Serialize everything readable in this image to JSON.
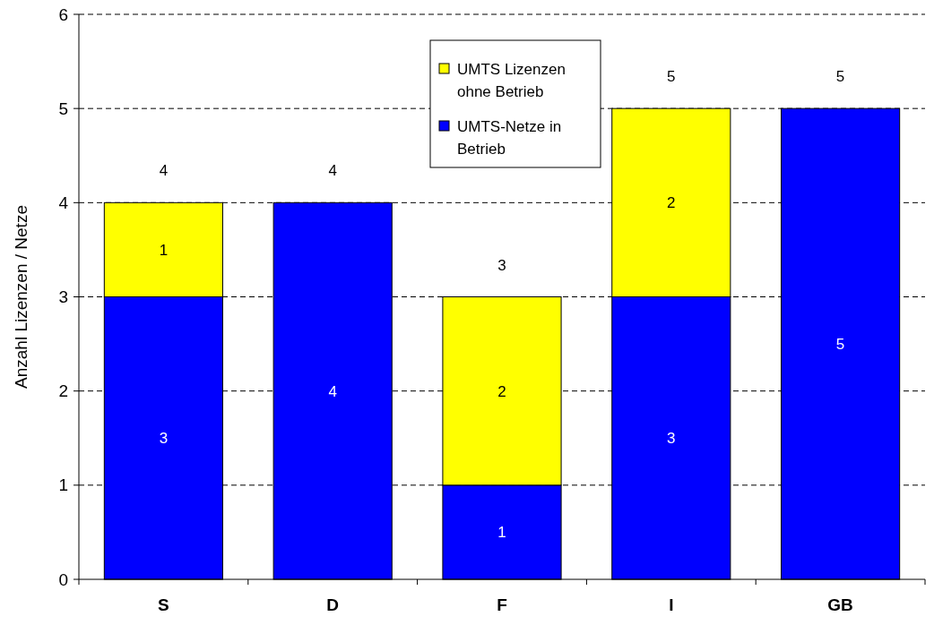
{
  "chart_data": {
    "type": "bar",
    "stacked": true,
    "ylabel": "Anzahl Lizenzen / Netze",
    "categories": [
      "S",
      "D",
      "F",
      "I",
      "GB"
    ],
    "series": [
      {
        "name": "UMTS-Netze in Betrieb",
        "color": "#0000ff",
        "values": [
          3,
          4,
          1,
          3,
          5
        ],
        "value_labels": [
          "3",
          "4",
          "1",
          "3",
          "5"
        ]
      },
      {
        "name": "UMTS Lizenzen ohne Betrieb",
        "color": "#ffff00",
        "values": [
          1,
          0,
          2,
          2,
          0
        ],
        "value_labels": [
          "1",
          null,
          "2",
          "2",
          null
        ]
      }
    ],
    "totals": [
      "4",
      "4",
      "3",
      "5",
      "5"
    ],
    "ylim": [
      0,
      6
    ],
    "yticks": [
      0,
      1,
      2,
      3,
      4,
      5,
      6
    ],
    "grid": "y",
    "legend": "top"
  }
}
